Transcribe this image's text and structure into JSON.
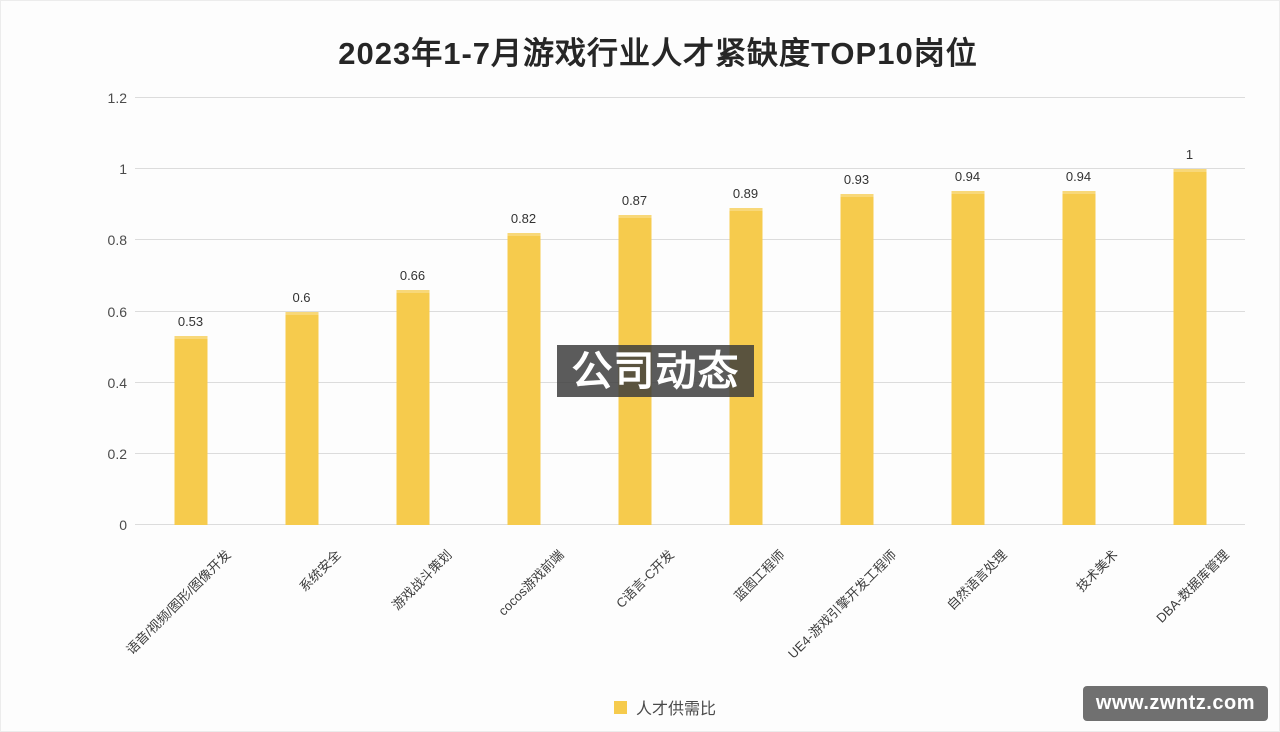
{
  "title": "2023年1-7月游戏行业人才紧缺度TOP10岗位",
  "watermark_text": "公司动态",
  "site_badge_text": "www.zwntz.com",
  "legend_label": "人才供需比",
  "colors": {
    "bar": "#F6CB4D",
    "grid": "#DCDCDC",
    "axis_text": "#4B4B4B",
    "title_text": "#262626",
    "watermark_bg": "rgba(60,60,60,0.84)",
    "badge_bg": "#707070"
  },
  "chart_data": {
    "type": "bar",
    "title": "2023年1-7月游戏行业人才紧缺度TOP10岗位",
    "categories": [
      "语音/视频/图形/图像开发",
      "系统安全",
      "游戏战斗策划",
      "cocos游戏前端",
      "C语言-C开发",
      "蓝图工程师",
      "UE4-游戏引擎开发工程师",
      "自然语言处理",
      "技术美术",
      "DBA-数据库管理"
    ],
    "values": [
      0.53,
      0.6,
      0.66,
      0.82,
      0.87,
      0.89,
      0.93,
      0.94,
      0.94,
      1
    ],
    "value_labels": [
      "0.53",
      "0.6",
      "0.66",
      "0.82",
      "0.87",
      "0.89",
      "0.93",
      "0.94",
      "0.94",
      "1"
    ],
    "xlabel": "",
    "ylabel": "",
    "ylim": [
      0,
      1.2
    ],
    "yticks": [
      0,
      0.2,
      0.4,
      0.6,
      0.8,
      1,
      1.2
    ],
    "ytick_labels": [
      "0",
      "0.2",
      "0.4",
      "0.6",
      "0.8",
      "1",
      "1.2"
    ],
    "legend": [
      "人才供需比"
    ],
    "legend_position": "bottom",
    "grid": true,
    "bar_color": "#F6CB4D"
  }
}
